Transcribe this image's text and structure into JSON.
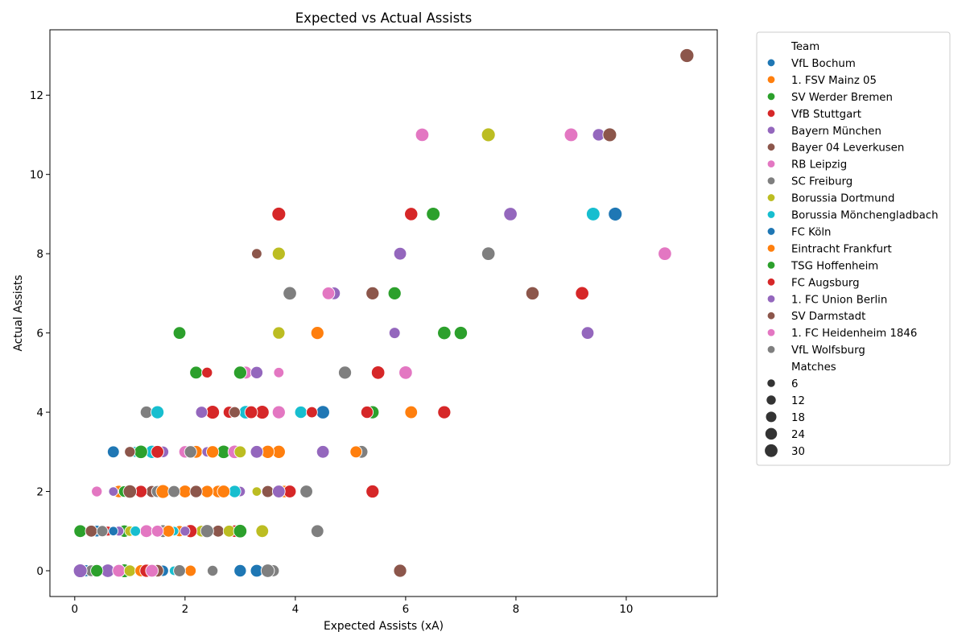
{
  "chart_data": {
    "type": "scatter",
    "title": "Expected vs Actual Assists",
    "xlabel": "Expected Assists (xA)",
    "ylabel": "Actual Assists",
    "xlim": [
      -0.45,
      11.65
    ],
    "ylim": [
      -0.65,
      13.65
    ],
    "xticks": [
      0,
      2,
      4,
      6,
      8,
      10
    ],
    "yticks": [
      0,
      2,
      4,
      6,
      8,
      10,
      12
    ],
    "grid": false,
    "legend": {
      "placement": "outside-right",
      "hue_title": "Team",
      "size_title": "Matches",
      "size_levels": [
        6,
        12,
        18,
        24,
        30
      ],
      "size_marker_color": "#333333"
    },
    "series": [
      {
        "name": "VfL Bochum",
        "color": "#1f77b4",
        "points": [
          {
            "x": 9.8,
            "y": 9,
            "matches": 32
          },
          {
            "x": 0.7,
            "y": 3,
            "matches": 22
          },
          {
            "x": 0.4,
            "y": 1,
            "matches": 20
          },
          {
            "x": 0.2,
            "y": 0,
            "matches": 22
          },
          {
            "x": 3.0,
            "y": 0,
            "matches": 24
          }
        ]
      },
      {
        "name": "1. FSV Mainz 05",
        "color": "#ff7f0e",
        "points": [
          {
            "x": 6.1,
            "y": 4,
            "matches": 26
          },
          {
            "x": 2.2,
            "y": 3,
            "matches": 26
          },
          {
            "x": 3.7,
            "y": 3,
            "matches": 28
          },
          {
            "x": 0.8,
            "y": 2,
            "matches": 24
          },
          {
            "x": 2.0,
            "y": 2,
            "matches": 26
          },
          {
            "x": 2.6,
            "y": 2,
            "matches": 24
          },
          {
            "x": 3.8,
            "y": 2,
            "matches": 24
          },
          {
            "x": 0.1,
            "y": 1,
            "matches": 10
          },
          {
            "x": 1.9,
            "y": 1,
            "matches": 18
          },
          {
            "x": 2.1,
            "y": 0,
            "matches": 18
          }
        ]
      },
      {
        "name": "SV Werder Bremen",
        "color": "#2ca02c",
        "points": [
          {
            "x": 6.5,
            "y": 9,
            "matches": 31
          },
          {
            "x": 7.0,
            "y": 6,
            "matches": 29
          },
          {
            "x": 2.2,
            "y": 5,
            "matches": 26
          },
          {
            "x": 5.4,
            "y": 4,
            "matches": 28
          },
          {
            "x": 2.7,
            "y": 3,
            "matches": 30
          },
          {
            "x": 0.9,
            "y": 2,
            "matches": 20
          },
          {
            "x": 0.9,
            "y": 1,
            "matches": 24
          },
          {
            "x": 0.9,
            "y": 0,
            "matches": 32
          }
        ]
      },
      {
        "name": "VfB Stuttgart",
        "color": "#d62728",
        "points": [
          {
            "x": 3.7,
            "y": 9,
            "matches": 32
          },
          {
            "x": 6.1,
            "y": 9,
            "matches": 29
          },
          {
            "x": 9.2,
            "y": 7,
            "matches": 30
          },
          {
            "x": 2.5,
            "y": 4,
            "matches": 32
          },
          {
            "x": 3.4,
            "y": 4,
            "matches": 32
          },
          {
            "x": 6.7,
            "y": 4,
            "matches": 28
          },
          {
            "x": 3.9,
            "y": 2,
            "matches": 26
          },
          {
            "x": 0.6,
            "y": 1,
            "matches": 12
          },
          {
            "x": 2.9,
            "y": 1,
            "matches": 24
          }
        ]
      },
      {
        "name": "Bayern München",
        "color": "#9467bd",
        "points": [
          {
            "x": 9.5,
            "y": 11,
            "matches": 24
          },
          {
            "x": 7.9,
            "y": 9,
            "matches": 30
          },
          {
            "x": 5.9,
            "y": 8,
            "matches": 26
          },
          {
            "x": 5.8,
            "y": 6,
            "matches": 18
          },
          {
            "x": 9.3,
            "y": 6,
            "matches": 26
          },
          {
            "x": 1.6,
            "y": 3,
            "matches": 20
          },
          {
            "x": 2.4,
            "y": 3,
            "matches": 14
          },
          {
            "x": 3.0,
            "y": 2,
            "matches": 14
          },
          {
            "x": 0.8,
            "y": 1,
            "matches": 12
          },
          {
            "x": 0.6,
            "y": 0,
            "matches": 30
          }
        ]
      },
      {
        "name": "Bayer 04 Leverkusen",
        "color": "#8c564b",
        "points": [
          {
            "x": 11.1,
            "y": 13,
            "matches": 33
          },
          {
            "x": 9.7,
            "y": 11,
            "matches": 32
          },
          {
            "x": 5.4,
            "y": 7,
            "matches": 28
          },
          {
            "x": 8.3,
            "y": 7,
            "matches": 29
          },
          {
            "x": 1.4,
            "y": 2,
            "matches": 22
          },
          {
            "x": 3.5,
            "y": 2,
            "matches": 22
          },
          {
            "x": 2.6,
            "y": 1,
            "matches": 22
          }
        ]
      },
      {
        "name": "RB Leipzig",
        "color": "#e377c2",
        "points": [
          {
            "x": 6.3,
            "y": 11,
            "matches": 30
          },
          {
            "x": 10.7,
            "y": 8,
            "matches": 30
          },
          {
            "x": 3.1,
            "y": 5,
            "matches": 26
          },
          {
            "x": 3.7,
            "y": 4,
            "matches": 28
          },
          {
            "x": 2.0,
            "y": 3,
            "matches": 24
          },
          {
            "x": 2.9,
            "y": 3,
            "matches": 30
          },
          {
            "x": 1.3,
            "y": 1,
            "matches": 26
          },
          {
            "x": 0.8,
            "y": 0,
            "matches": 26
          }
        ]
      },
      {
        "name": "SC Freiburg",
        "color": "#7f7f7f",
        "points": [
          {
            "x": 7.5,
            "y": 8,
            "matches": 30
          },
          {
            "x": 4.9,
            "y": 5,
            "matches": 28
          },
          {
            "x": 1.3,
            "y": 4,
            "matches": 24
          },
          {
            "x": 5.2,
            "y": 3,
            "matches": 26
          },
          {
            "x": 1.5,
            "y": 2,
            "matches": 22
          },
          {
            "x": 1.6,
            "y": 1,
            "matches": 26
          },
          {
            "x": 4.4,
            "y": 1,
            "matches": 26
          },
          {
            "x": 0.3,
            "y": 0,
            "matches": 20
          },
          {
            "x": 2.5,
            "y": 0,
            "matches": 16
          },
          {
            "x": 3.6,
            "y": 0,
            "matches": 22
          }
        ]
      },
      {
        "name": "Borussia Dortmund",
        "color": "#bcbd22",
        "points": [
          {
            "x": 7.5,
            "y": 11,
            "matches": 32
          },
          {
            "x": 3.7,
            "y": 8,
            "matches": 28
          },
          {
            "x": 3.7,
            "y": 6,
            "matches": 24
          },
          {
            "x": 3.0,
            "y": 3,
            "matches": 22
          },
          {
            "x": 3.3,
            "y": 2,
            "matches": 10
          },
          {
            "x": 1.0,
            "y": 1,
            "matches": 14
          },
          {
            "x": 2.3,
            "y": 1,
            "matches": 20
          },
          {
            "x": 2.8,
            "y": 1,
            "matches": 22
          },
          {
            "x": 3.4,
            "y": 1,
            "matches": 26
          },
          {
            "x": 1.0,
            "y": 0,
            "matches": 20
          }
        ]
      },
      {
        "name": "Borussia Mönchengladbach",
        "color": "#17becf",
        "points": [
          {
            "x": 9.4,
            "y": 9,
            "matches": 31
          },
          {
            "x": 1.5,
            "y": 4,
            "matches": 28
          },
          {
            "x": 3.1,
            "y": 4,
            "matches": 30
          },
          {
            "x": 4.1,
            "y": 4,
            "matches": 24
          },
          {
            "x": 1.1,
            "y": 3,
            "matches": 16
          },
          {
            "x": 1.4,
            "y": 3,
            "matches": 28
          },
          {
            "x": 2.9,
            "y": 2,
            "matches": 24
          },
          {
            "x": 1.1,
            "y": 1,
            "matches": 14
          },
          {
            "x": 1.8,
            "y": 1,
            "matches": 10
          },
          {
            "x": 1.8,
            "y": 0,
            "matches": 10
          }
        ]
      },
      {
        "name": "FC Köln",
        "color": "#1f77b4",
        "points": [
          {
            "x": 4.5,
            "y": 4,
            "matches": 30
          },
          {
            "x": 0.7,
            "y": 1,
            "matches": 10
          },
          {
            "x": 1.6,
            "y": 0,
            "matches": 18
          },
          {
            "x": 3.3,
            "y": 0,
            "matches": 26
          }
        ]
      },
      {
        "name": "Eintracht Frankfurt",
        "color": "#ff7f0e",
        "points": [
          {
            "x": 4.4,
            "y": 6,
            "matches": 28
          },
          {
            "x": 2.5,
            "y": 3,
            "matches": 24
          },
          {
            "x": 3.5,
            "y": 3,
            "matches": 28
          },
          {
            "x": 5.1,
            "y": 3,
            "matches": 22
          },
          {
            "x": 1.6,
            "y": 2,
            "matches": 32
          },
          {
            "x": 2.4,
            "y": 2,
            "matches": 24
          },
          {
            "x": 2.7,
            "y": 2,
            "matches": 26
          },
          {
            "x": 1.7,
            "y": 1,
            "matches": 22
          },
          {
            "x": 1.2,
            "y": 0,
            "matches": 22
          }
        ]
      },
      {
        "name": "TSG Hoffenheim",
        "color": "#2ca02c",
        "points": [
          {
            "x": 5.8,
            "y": 7,
            "matches": 28
          },
          {
            "x": 1.9,
            "y": 6,
            "matches": 26
          },
          {
            "x": 6.7,
            "y": 6,
            "matches": 30
          },
          {
            "x": 3.0,
            "y": 5,
            "matches": 28
          },
          {
            "x": 1.2,
            "y": 3,
            "matches": 30
          },
          {
            "x": 0.1,
            "y": 1,
            "matches": 26
          },
          {
            "x": 3.0,
            "y": 1,
            "matches": 30
          },
          {
            "x": 0.4,
            "y": 0,
            "matches": 24
          }
        ]
      },
      {
        "name": "FC Augsburg",
        "color": "#d62728",
        "points": [
          {
            "x": 2.4,
            "y": 5,
            "matches": 16
          },
          {
            "x": 5.5,
            "y": 5,
            "matches": 30
          },
          {
            "x": 2.8,
            "y": 4,
            "matches": 22
          },
          {
            "x": 3.2,
            "y": 4,
            "matches": 26
          },
          {
            "x": 4.3,
            "y": 4,
            "matches": 18
          },
          {
            "x": 5.3,
            "y": 4,
            "matches": 24
          },
          {
            "x": 1.5,
            "y": 3,
            "matches": 26
          },
          {
            "x": 1.2,
            "y": 2,
            "matches": 24
          },
          {
            "x": 5.4,
            "y": 2,
            "matches": 28
          },
          {
            "x": 2.1,
            "y": 1,
            "matches": 28
          },
          {
            "x": 1.3,
            "y": 0,
            "matches": 28
          }
        ]
      },
      {
        "name": "1. FC Union Berlin",
        "color": "#9467bd",
        "points": [
          {
            "x": 4.7,
            "y": 7,
            "matches": 26
          },
          {
            "x": 3.3,
            "y": 5,
            "matches": 24
          },
          {
            "x": 2.3,
            "y": 4,
            "matches": 22
          },
          {
            "x": 3.3,
            "y": 3,
            "matches": 26
          },
          {
            "x": 4.5,
            "y": 3,
            "matches": 26
          },
          {
            "x": 0.7,
            "y": 2,
            "matches": 10
          },
          {
            "x": 3.7,
            "y": 2,
            "matches": 26
          },
          {
            "x": 2.0,
            "y": 1,
            "matches": 12
          },
          {
            "x": 0.1,
            "y": 0,
            "matches": 32
          }
        ]
      },
      {
        "name": "SV Darmstadt",
        "color": "#8c564b",
        "points": [
          {
            "x": 3.3,
            "y": 8,
            "matches": 14
          },
          {
            "x": 2.9,
            "y": 4,
            "matches": 18
          },
          {
            "x": 1.0,
            "y": 3,
            "matches": 16
          },
          {
            "x": 1.0,
            "y": 2,
            "matches": 30
          },
          {
            "x": 2.2,
            "y": 2,
            "matches": 24
          },
          {
            "x": 0.3,
            "y": 1,
            "matches": 22
          },
          {
            "x": 1.5,
            "y": 0,
            "matches": 24
          },
          {
            "x": 5.9,
            "y": 0,
            "matches": 28
          }
        ]
      },
      {
        "name": "1. FC Heidenheim 1846",
        "color": "#e377c2",
        "points": [
          {
            "x": 9.0,
            "y": 11,
            "matches": 31
          },
          {
            "x": 4.6,
            "y": 7,
            "matches": 26
          },
          {
            "x": 3.7,
            "y": 5,
            "matches": 14
          },
          {
            "x": 6.0,
            "y": 5,
            "matches": 30
          },
          {
            "x": 0.4,
            "y": 2,
            "matches": 16
          },
          {
            "x": 1.5,
            "y": 1,
            "matches": 22
          },
          {
            "x": 1.4,
            "y": 0,
            "matches": 26
          }
        ]
      },
      {
        "name": "VfL Wolfsburg",
        "color": "#7f7f7f",
        "points": [
          {
            "x": 3.9,
            "y": 7,
            "matches": 30
          },
          {
            "x": 2.1,
            "y": 3,
            "matches": 24
          },
          {
            "x": 1.8,
            "y": 2,
            "matches": 22
          },
          {
            "x": 4.2,
            "y": 2,
            "matches": 26
          },
          {
            "x": 0.5,
            "y": 1,
            "matches": 18
          },
          {
            "x": 2.4,
            "y": 1,
            "matches": 28
          },
          {
            "x": 1.9,
            "y": 0,
            "matches": 22
          },
          {
            "x": 3.5,
            "y": 0,
            "matches": 30
          }
        ]
      }
    ]
  }
}
